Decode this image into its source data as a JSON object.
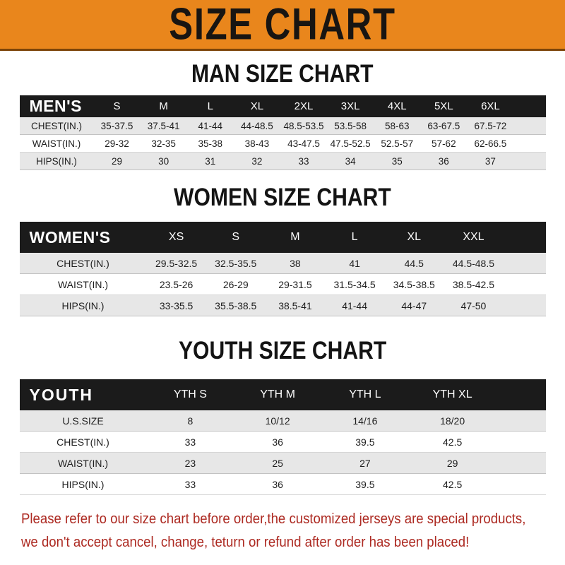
{
  "banner": {
    "title": "SIZE CHART"
  },
  "colors": {
    "banner_bg": "#E9861C",
    "header_bar": "#1B1B1B",
    "row_stripe": "#E7E7E7",
    "footer_text": "#AD2A22"
  },
  "sections": {
    "men": {
      "heading": "MAN SIZE CHART",
      "header": {
        "label": "MEN'S",
        "cols": [
          "S",
          "M",
          "L",
          "XL",
          "2XL",
          "3XL",
          "4XL",
          "5XL",
          "6XL"
        ]
      },
      "rows": [
        {
          "label": "CHEST(IN.)",
          "values": [
            "35-37.5",
            "37.5-41",
            "41-44",
            "44-48.5",
            "48.5-53.5",
            "53.5-58",
            "58-63",
            "63-67.5",
            "67.5-72"
          ]
        },
        {
          "label": "WAIST(IN.)",
          "values": [
            "29-32",
            "32-35",
            "35-38",
            "38-43",
            "43-47.5",
            "47.5-52.5",
            "52.5-57",
            "57-62",
            "62-66.5"
          ]
        },
        {
          "label": "HIPS(IN.)",
          "values": [
            "29",
            "30",
            "31",
            "32",
            "33",
            "34",
            "35",
            "36",
            "37"
          ]
        }
      ]
    },
    "women": {
      "heading": "WOMEN SIZE CHART",
      "header": {
        "label": "WOMEN'S",
        "cols": [
          "XS",
          "S",
          "M",
          "L",
          "XL",
          "XXL"
        ]
      },
      "rows": [
        {
          "label": "CHEST(IN.)",
          "values": [
            "29.5-32.5",
            "32.5-35.5",
            "38",
            "41",
            "44.5",
            "44.5-48.5"
          ]
        },
        {
          "label": "WAIST(IN.)",
          "values": [
            "23.5-26",
            "26-29",
            "29-31.5",
            "31.5-34.5",
            "34.5-38.5",
            "38.5-42.5"
          ]
        },
        {
          "label": "HIPS(IN.)",
          "values": [
            "33-35.5",
            "35.5-38.5",
            "38.5-41",
            "41-44",
            "44-47",
            "47-50"
          ]
        }
      ]
    },
    "youth": {
      "heading": "YOUTH SIZE CHART",
      "header": {
        "label": "YOUTH",
        "cols": [
          "YTH S",
          "YTH M",
          "YTH L",
          "YTH XL"
        ]
      },
      "rows": [
        {
          "label": "U.S.SIZE",
          "values": [
            "8",
            "10/12",
            "14/16",
            "18/20"
          ]
        },
        {
          "label": "CHEST(IN.)",
          "values": [
            "33",
            "36",
            "39.5",
            "42.5"
          ]
        },
        {
          "label": "WAIST(IN.)",
          "values": [
            "23",
            "25",
            "27",
            "29"
          ]
        },
        {
          "label": "HIPS(IN.)",
          "values": [
            "33",
            "36",
            "39.5",
            "42.5"
          ]
        }
      ]
    }
  },
  "footer": {
    "line1": "Please refer to our size chart before order,the customized jerseys are special products,",
    "line2": "we don't accept cancel, change, teturn or refund after order has been placed!"
  }
}
